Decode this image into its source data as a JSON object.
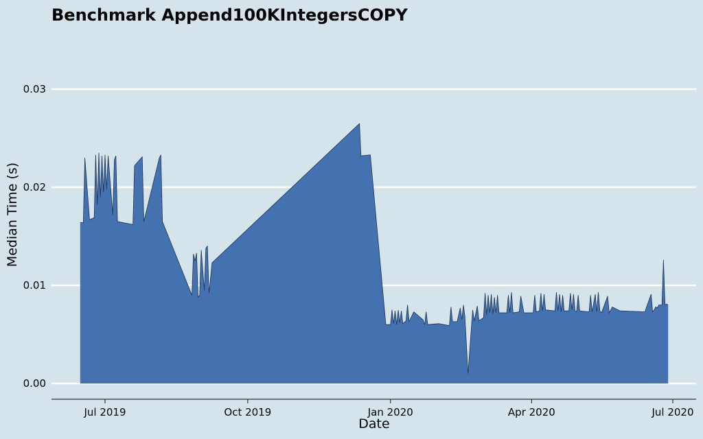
{
  "chart_data": {
    "type": "area",
    "title": "Benchmark Append100KIntegersCOPY",
    "xlabel": "Date",
    "ylabel": "Median Time (s)",
    "x_range": [
      "2019-06-10",
      "2020-07-01"
    ],
    "ylim": [
      0,
      0.034
    ],
    "y_ticks": [
      {
        "value": 0.0,
        "label": "0.00"
      },
      {
        "value": 0.01,
        "label": "0.01"
      },
      {
        "value": 0.02,
        "label": "0.02"
      },
      {
        "value": 0.03,
        "label": "0.03"
      }
    ],
    "x_ticks": [
      {
        "date": "2019-07-01",
        "label": "Jul 2019"
      },
      {
        "date": "2019-10-01",
        "label": "Oct 2019"
      },
      {
        "date": "2020-01-01",
        "label": "Jan 2020"
      },
      {
        "date": "2020-04-01",
        "label": "Apr 2020"
      },
      {
        "date": "2020-07-01",
        "label": "Jul 2020"
      }
    ],
    "grid": true,
    "fill_color": "#4472b0",
    "line_color": "#1f3552",
    "series": [
      {
        "points": [
          [
            "2019-06-15",
            0.0164
          ],
          [
            "2019-06-17",
            0.0164
          ],
          [
            "2019-06-18",
            0.023
          ],
          [
            "2019-06-21",
            0.0167
          ],
          [
            "2019-06-24",
            0.0169
          ],
          [
            "2019-06-25",
            0.0233
          ],
          [
            "2019-06-26",
            0.0182
          ],
          [
            "2019-06-27",
            0.0235
          ],
          [
            "2019-06-28",
            0.019
          ],
          [
            "2019-06-29",
            0.0232
          ],
          [
            "2019-06-30",
            0.0195
          ],
          [
            "2019-07-01",
            0.0233
          ],
          [
            "2019-07-02",
            0.0198
          ],
          [
            "2019-07-03",
            0.0232
          ],
          [
            "2019-07-06",
            0.0172
          ],
          [
            "2019-07-07",
            0.0228
          ],
          [
            "2019-07-08",
            0.0232
          ],
          [
            "2019-07-09",
            0.0165
          ],
          [
            "2019-07-19",
            0.0162
          ],
          [
            "2019-07-20",
            0.0222
          ],
          [
            "2019-07-25",
            0.0231
          ],
          [
            "2019-07-26",
            0.0165
          ],
          [
            "2019-08-05",
            0.023
          ],
          [
            "2019-08-06",
            0.0233
          ],
          [
            "2019-08-07",
            0.0165
          ],
          [
            "2019-08-26",
            0.009
          ],
          [
            "2019-08-27",
            0.0132
          ],
          [
            "2019-08-28",
            0.0125
          ],
          [
            "2019-08-29",
            0.0133
          ],
          [
            "2019-08-30",
            0.0088
          ],
          [
            "2019-08-31",
            0.009
          ],
          [
            "2019-09-01",
            0.0136
          ],
          [
            "2019-09-03",
            0.0095
          ],
          [
            "2019-09-04",
            0.0138
          ],
          [
            "2019-09-05",
            0.014
          ],
          [
            "2019-09-06",
            0.0092
          ],
          [
            "2019-09-08",
            0.0123
          ],
          [
            "2019-12-12",
            0.0265
          ],
          [
            "2019-12-13",
            0.0232
          ],
          [
            "2019-12-19",
            0.0233
          ],
          [
            "2019-12-29",
            0.006
          ],
          [
            "2020-01-01",
            0.006
          ],
          [
            "2020-01-02",
            0.0075
          ],
          [
            "2020-01-03",
            0.0061
          ],
          [
            "2020-01-04",
            0.0074
          ],
          [
            "2020-01-05",
            0.006
          ],
          [
            "2020-01-06",
            0.0075
          ],
          [
            "2020-01-07",
            0.0062
          ],
          [
            "2020-01-08",
            0.0074
          ],
          [
            "2020-01-09",
            0.0061
          ],
          [
            "2020-01-11",
            0.0064
          ],
          [
            "2020-01-12",
            0.008
          ],
          [
            "2020-01-13",
            0.0063
          ],
          [
            "2020-01-16",
            0.0073
          ],
          [
            "2020-01-22",
            0.0065
          ],
          [
            "2020-01-23",
            0.006
          ],
          [
            "2020-01-24",
            0.0073
          ],
          [
            "2020-01-25",
            0.006
          ],
          [
            "2020-02-01",
            0.0061
          ],
          [
            "2020-02-08",
            0.0059
          ],
          [
            "2020-02-09",
            0.0078
          ],
          [
            "2020-02-10",
            0.0063
          ],
          [
            "2020-02-13",
            0.0063
          ],
          [
            "2020-02-15",
            0.0077
          ],
          [
            "2020-02-16",
            0.0065
          ],
          [
            "2020-02-17",
            0.008
          ],
          [
            "2020-02-18",
            0.0068
          ],
          [
            "2020-02-20",
            0.001
          ],
          [
            "2020-02-23",
            0.0075
          ],
          [
            "2020-02-24",
            0.0064
          ],
          [
            "2020-02-26",
            0.0079
          ],
          [
            "2020-02-27",
            0.0064
          ],
          [
            "2020-03-01",
            0.0067
          ],
          [
            "2020-03-02",
            0.0092
          ],
          [
            "2020-03-03",
            0.007
          ],
          [
            "2020-03-04",
            0.009
          ],
          [
            "2020-03-05",
            0.0072
          ],
          [
            "2020-03-06",
            0.0091
          ],
          [
            "2020-03-07",
            0.0071
          ],
          [
            "2020-03-08",
            0.0088
          ],
          [
            "2020-03-09",
            0.0072
          ],
          [
            "2020-03-10",
            0.009
          ],
          [
            "2020-03-11",
            0.0072
          ],
          [
            "2020-03-16",
            0.0072
          ],
          [
            "2020-03-17",
            0.009
          ],
          [
            "2020-03-18",
            0.0072
          ],
          [
            "2020-03-19",
            0.0093
          ],
          [
            "2020-03-20",
            0.0072
          ],
          [
            "2020-03-24",
            0.0073
          ],
          [
            "2020-03-25",
            0.0089
          ],
          [
            "2020-03-27",
            0.0072
          ],
          [
            "2020-04-02",
            0.0072
          ],
          [
            "2020-04-03",
            0.009
          ],
          [
            "2020-04-04",
            0.0073
          ],
          [
            "2020-04-06",
            0.0074
          ],
          [
            "2020-04-07",
            0.0092
          ],
          [
            "2020-04-08",
            0.0074
          ],
          [
            "2020-04-09",
            0.0091
          ],
          [
            "2020-04-10",
            0.0075
          ],
          [
            "2020-04-16",
            0.0074
          ],
          [
            "2020-04-17",
            0.0093
          ],
          [
            "2020-04-18",
            0.0074
          ],
          [
            "2020-04-19",
            0.0091
          ],
          [
            "2020-04-20",
            0.0073
          ],
          [
            "2020-04-21",
            0.009
          ],
          [
            "2020-04-22",
            0.0074
          ],
          [
            "2020-04-25",
            0.0074
          ],
          [
            "2020-04-26",
            0.0092
          ],
          [
            "2020-04-27",
            0.0075
          ],
          [
            "2020-04-28",
            0.0091
          ],
          [
            "2020-04-29",
            0.0074
          ],
          [
            "2020-04-30",
            0.0073
          ],
          [
            "2020-05-01",
            0.009
          ],
          [
            "2020-05-02",
            0.0074
          ],
          [
            "2020-05-08",
            0.0073
          ],
          [
            "2020-05-09",
            0.009
          ],
          [
            "2020-05-10",
            0.0073
          ],
          [
            "2020-05-12",
            0.0091
          ],
          [
            "2020-05-13",
            0.0073
          ],
          [
            "2020-05-14",
            0.0093
          ],
          [
            "2020-05-15",
            0.0074
          ],
          [
            "2020-05-16",
            0.0072
          ],
          [
            "2020-05-17",
            0.0076
          ],
          [
            "2020-05-20",
            0.0089
          ],
          [
            "2020-05-21",
            0.0072
          ],
          [
            "2020-05-23",
            0.0078
          ],
          [
            "2020-05-28",
            0.0074
          ],
          [
            "2020-06-13",
            0.0073
          ],
          [
            "2020-06-17",
            0.0091
          ],
          [
            "2020-06-18",
            0.0073
          ],
          [
            "2020-06-19",
            0.0075
          ],
          [
            "2020-06-20",
            0.0078
          ],
          [
            "2020-06-21",
            0.0077
          ],
          [
            "2020-06-22",
            0.008
          ],
          [
            "2020-06-24",
            0.008
          ],
          [
            "2020-06-25",
            0.0126
          ],
          [
            "2020-06-26",
            0.008
          ],
          [
            "2020-06-27",
            0.0081
          ],
          [
            "2020-06-28",
            0.008
          ]
        ]
      }
    ]
  }
}
